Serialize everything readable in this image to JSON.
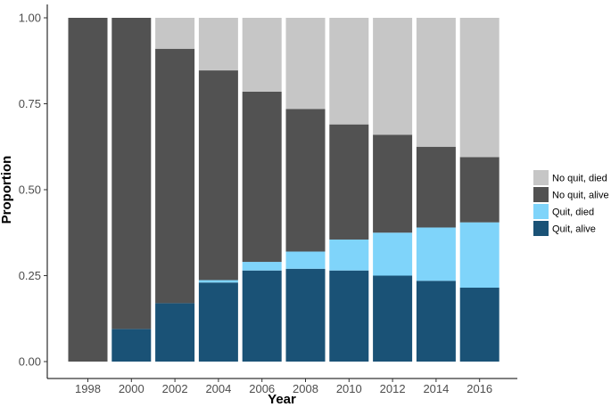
{
  "chart_data": {
    "type": "bar",
    "stacked": true,
    "xlabel": "Year",
    "ylabel": "Proportion",
    "ylim": [
      0,
      1
    ],
    "yticks": [
      "0.00",
      "0.25",
      "0.50",
      "0.75",
      "1.00"
    ],
    "ytick_values": [
      0,
      0.25,
      0.5,
      0.75,
      1.0
    ],
    "categories": [
      "1998",
      "2000",
      "2002",
      "2004",
      "2006",
      "2008",
      "2010",
      "2012",
      "2014",
      "2016"
    ],
    "series": [
      {
        "name": "Quit, alive",
        "color": "#1a5276",
        "values": [
          0.0,
          0.095,
          0.17,
          0.23,
          0.265,
          0.27,
          0.265,
          0.25,
          0.235,
          0.215
        ]
      },
      {
        "name": "Quit, died",
        "color": "#7fd4fa",
        "values": [
          0.0,
          0.0,
          0.0,
          0.007,
          0.025,
          0.05,
          0.09,
          0.125,
          0.155,
          0.19
        ]
      },
      {
        "name": "No quit, alive",
        "color": "#525252",
        "values": [
          1.0,
          0.905,
          0.74,
          0.61,
          0.495,
          0.415,
          0.335,
          0.285,
          0.235,
          0.19
        ]
      },
      {
        "name": "No quit, died",
        "color": "#c6c6c6",
        "values": [
          0.0,
          0.0,
          0.09,
          0.153,
          0.215,
          0.265,
          0.31,
          0.34,
          0.375,
          0.405
        ]
      }
    ],
    "legend": {
      "position": "right",
      "order": [
        "No quit, died",
        "No quit, alive",
        "Quit, died",
        "Quit, alive"
      ]
    },
    "grid": false
  }
}
